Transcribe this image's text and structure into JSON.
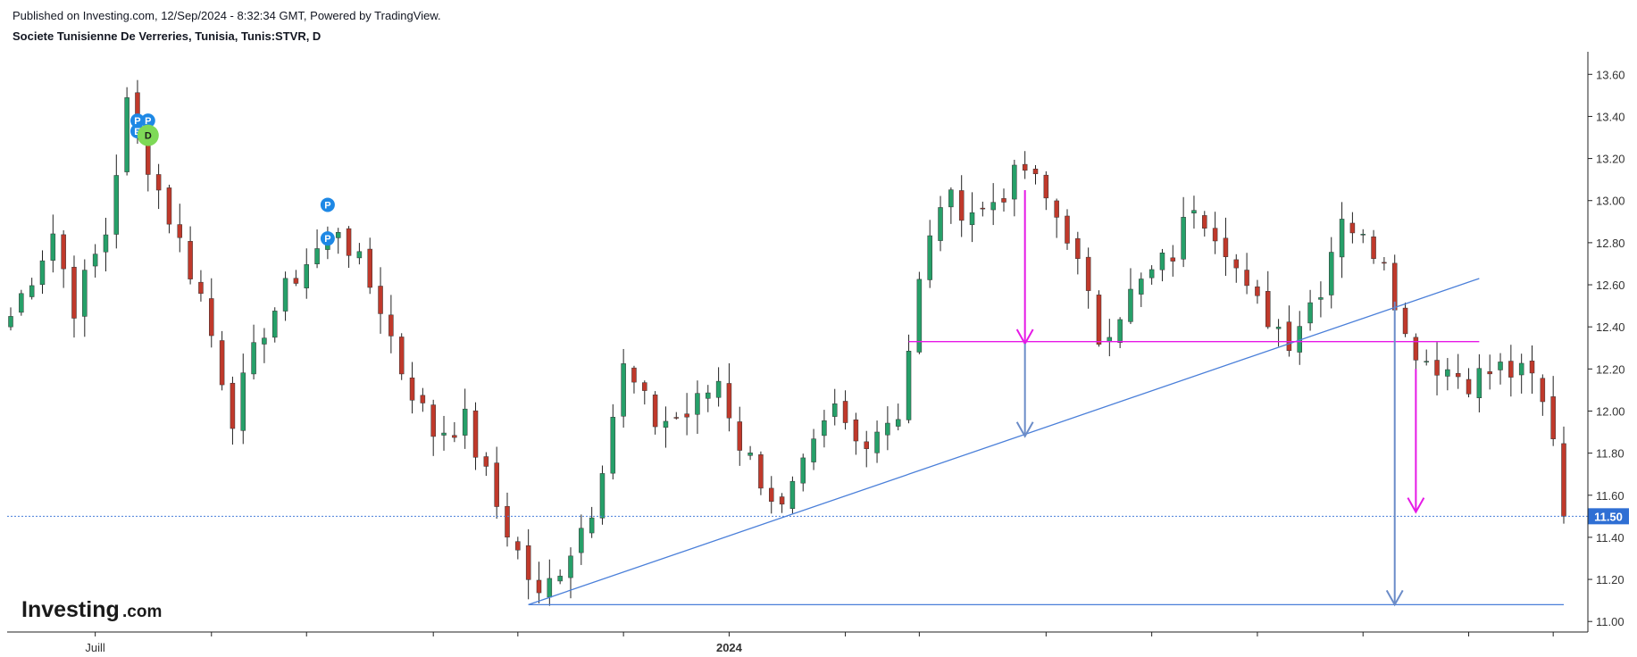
{
  "header": {
    "published": "Published on Investing.com, 12/Sep/2024 - 8:32:34 GMT, Powered by TradingView.",
    "symbol": "Societe Tunisienne De Verreries, Tunisia, Tunis:STVR, D"
  },
  "watermark": {
    "brand": "Investing",
    "suffix": ".com"
  },
  "colors": {
    "up": "#26a069",
    "down": "#c0392b",
    "trend": "#4a7fd9",
    "magenta": "#e619e6",
    "arrow_blue": "#6b8cc8",
    "last_price_bg": "#2f6fd4"
  },
  "chart_data": {
    "type": "candlestick",
    "title": "Societe Tunisienne De Verreries, Tunisia, Tunis:STVR, D",
    "ylim": [
      10.95,
      13.72
    ],
    "y_ticks": [
      11.0,
      11.2,
      11.4,
      11.6,
      11.8,
      12.0,
      12.2,
      12.4,
      12.6,
      12.8,
      13.0,
      13.2,
      13.4,
      13.6
    ],
    "y_tick_labels": [
      "11.00",
      "11.20",
      "11.40",
      "11.60",
      "11.80",
      "12.00",
      "12.20",
      "12.40",
      "12.60",
      "12.80",
      "13.00",
      "13.20",
      "13.40",
      "13.60"
    ],
    "x_labels": [
      {
        "label": "Juill",
        "bar": 8,
        "bold": false
      },
      {
        "label": "2024",
        "bar": 68,
        "bold": true
      }
    ],
    "x_tick_bars": [
      8,
      19,
      28,
      40,
      48,
      58,
      68,
      79,
      86,
      98,
      108,
      118,
      128,
      138,
      146
    ],
    "last_price": 11.5,
    "last_price_label": "11.50",
    "keypoints": [
      {
        "bar": 0,
        "close": 12.45
      },
      {
        "bar": 4,
        "close": 12.85
      },
      {
        "bar": 6,
        "close": 12.5
      },
      {
        "bar": 9,
        "close": 12.85
      },
      {
        "bar": 11,
        "close": 13.45
      },
      {
        "bar": 14,
        "close": 13.05
      },
      {
        "bar": 18,
        "close": 12.55
      },
      {
        "bar": 21,
        "close": 11.98
      },
      {
        "bar": 24,
        "close": 12.4
      },
      {
        "bar": 27,
        "close": 12.65
      },
      {
        "bar": 31,
        "close": 12.88
      },
      {
        "bar": 35,
        "close": 12.5
      },
      {
        "bar": 37,
        "close": 12.2
      },
      {
        "bar": 40,
        "close": 11.9
      },
      {
        "bar": 43,
        "close": 11.95
      },
      {
        "bar": 46,
        "close": 11.55
      },
      {
        "bar": 50,
        "close": 11.1
      },
      {
        "bar": 53,
        "close": 11.35
      },
      {
        "bar": 55,
        "close": 11.55
      },
      {
        "bar": 58,
        "close": 12.2
      },
      {
        "bar": 61,
        "close": 11.95
      },
      {
        "bar": 64,
        "close": 11.98
      },
      {
        "bar": 67,
        "close": 12.15
      },
      {
        "bar": 69,
        "close": 11.85
      },
      {
        "bar": 73,
        "close": 11.52
      },
      {
        "bar": 78,
        "close": 12.0
      },
      {
        "bar": 80,
        "close": 11.85
      },
      {
        "bar": 84,
        "close": 12.0
      },
      {
        "bar": 86,
        "close": 12.6
      },
      {
        "bar": 88,
        "close": 13.0
      },
      {
        "bar": 92,
        "close": 12.95
      },
      {
        "bar": 96,
        "close": 13.15
      },
      {
        "bar": 100,
        "close": 12.85
      },
      {
        "bar": 103,
        "close": 12.35
      },
      {
        "bar": 106,
        "close": 12.55
      },
      {
        "bar": 110,
        "close": 12.75
      },
      {
        "bar": 112,
        "close": 13.0
      },
      {
        "bar": 115,
        "close": 12.8
      },
      {
        "bar": 117,
        "close": 12.55
      },
      {
        "bar": 121,
        "close": 12.35
      },
      {
        "bar": 124,
        "close": 12.6
      },
      {
        "bar": 126,
        "close": 12.95
      },
      {
        "bar": 128,
        "close": 12.8
      },
      {
        "bar": 130,
        "close": 12.75
      },
      {
        "bar": 132,
        "close": 12.35
      },
      {
        "bar": 134,
        "close": 12.25
      },
      {
        "bar": 138,
        "close": 12.15
      },
      {
        "bar": 141,
        "close": 12.2
      },
      {
        "bar": 144,
        "close": 12.15
      },
      {
        "bar": 146,
        "close": 11.9
      },
      {
        "bar": 147,
        "close": 11.5
      }
    ],
    "annotations": {
      "trendline": {
        "from": {
          "bar": 49,
          "price": 11.08
        },
        "to": {
          "bar": 139,
          "price": 12.63
        }
      },
      "support_line": {
        "from": {
          "bar": 49,
          "price": 11.08
        },
        "to": {
          "bar": 147,
          "price": 11.08
        }
      },
      "neckline": {
        "from": {
          "bar": 85,
          "price": 12.33
        },
        "to": {
          "bar": 139,
          "price": 12.33
        }
      },
      "arrows": [
        {
          "bar": 96,
          "from": 13.05,
          "to": 12.32,
          "color": "magenta"
        },
        {
          "bar": 96,
          "from": 12.32,
          "to": 11.88,
          "color": "arrow_blue"
        },
        {
          "bar": 133,
          "from": 12.2,
          "to": 11.52,
          "color": "magenta"
        },
        {
          "bar": 131,
          "from": 12.52,
          "to": 11.08,
          "color": "arrow_blue"
        }
      ],
      "markers": [
        {
          "bar": 12,
          "price": 13.38,
          "text": "P",
          "type": "p"
        },
        {
          "bar": 13,
          "price": 13.38,
          "text": "P",
          "type": "p"
        },
        {
          "bar": 12,
          "price": 13.33,
          "text": "E",
          "type": "p"
        },
        {
          "bar": 13,
          "price": 13.31,
          "text": "D",
          "type": "d"
        },
        {
          "bar": 30,
          "price": 12.98,
          "text": "P",
          "type": "p"
        },
        {
          "bar": 30,
          "price": 12.82,
          "text": "P",
          "type": "p"
        }
      ]
    }
  }
}
